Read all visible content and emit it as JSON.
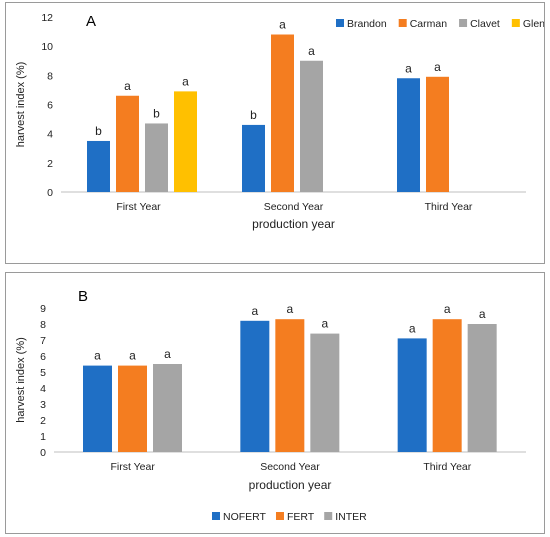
{
  "colors": {
    "Brandon": "#1f6fc5",
    "Carman": "#f47d20",
    "Clavet": "#a5a5a5",
    "Glenlea": "#ffc000",
    "NOFERT": "#1f6fc5",
    "FERT": "#f47d20",
    "INTER": "#a5a5a5"
  },
  "chart_data": [
    {
      "type": "bar",
      "panel_label": "A",
      "categories": [
        "First Year",
        "Second Year",
        "Third Year"
      ],
      "xlabel": "production year",
      "ylabel": "harvest index (%)",
      "ylim": [
        0,
        12
      ],
      "yticks": [
        0,
        2,
        4,
        6,
        8,
        10,
        12
      ],
      "legend_position": "top-right",
      "grid": false,
      "series": [
        {
          "name": "Brandon",
          "values": [
            3.5,
            4.6,
            7.8
          ],
          "labels": [
            "b",
            "b",
            "a"
          ]
        },
        {
          "name": "Carman",
          "values": [
            6.6,
            10.8,
            7.9
          ],
          "labels": [
            "a",
            "a",
            "a"
          ]
        },
        {
          "name": "Clavet",
          "values": [
            4.7,
            9.0,
            null
          ],
          "labels": [
            "b",
            "a",
            null
          ]
        },
        {
          "name": "Glenlea",
          "values": [
            6.9,
            null,
            null
          ],
          "labels": [
            "a",
            null,
            null
          ]
        }
      ]
    },
    {
      "type": "bar",
      "panel_label": "B",
      "categories": [
        "First Year",
        "Second Year",
        "Third Year"
      ],
      "xlabel": "production year",
      "ylabel": "harvest index (%)",
      "ylim": [
        0,
        9
      ],
      "yticks": [
        0,
        1,
        2,
        3,
        4,
        5,
        6,
        7,
        8,
        9
      ],
      "legend_position": "bottom",
      "grid": false,
      "series": [
        {
          "name": "NOFERT",
          "values": [
            5.4,
            8.2,
            7.1
          ],
          "labels": [
            "a",
            "a",
            "a"
          ]
        },
        {
          "name": "FERT",
          "values": [
            5.4,
            8.3,
            8.3
          ],
          "labels": [
            "a",
            "a",
            "a"
          ]
        },
        {
          "name": "INTER",
          "values": [
            5.5,
            7.4,
            8.0
          ],
          "labels": [
            "a",
            "a",
            "a"
          ]
        }
      ]
    }
  ]
}
